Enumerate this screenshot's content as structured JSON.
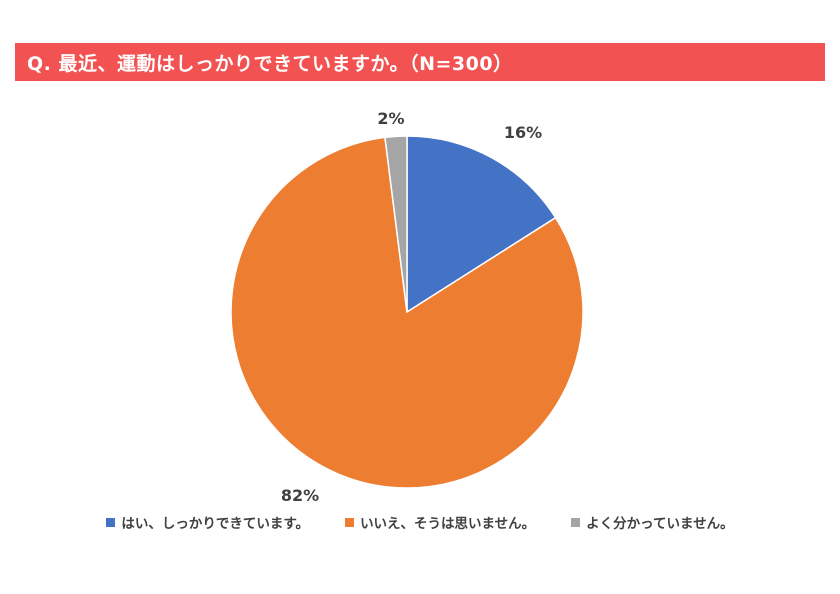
{
  "title": "Q.  最近、運動はしっかりできていますか。（N=300）",
  "colors": {
    "title_bar": "#f25252",
    "series": [
      "#4472c4",
      "#ed7d31",
      "#a5a5a5"
    ]
  },
  "chart_data": {
    "type": "pie",
    "title": "Q.  最近、運動はしっかりできていますか。（N=300）",
    "categories": [
      "はい、しっかりできています。",
      "いいえ、そうは思いません。",
      "よく分かっていません。"
    ],
    "values": [
      16,
      82,
      2
    ],
    "data_labels": [
      "16%",
      "82%",
      "2%"
    ],
    "legend_position": "bottom"
  }
}
